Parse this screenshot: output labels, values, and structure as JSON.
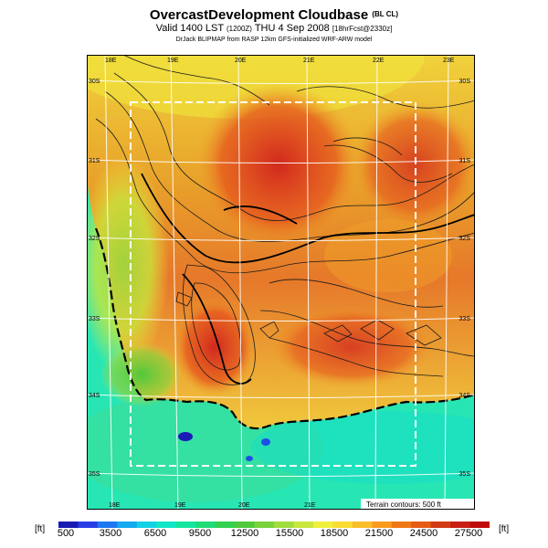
{
  "header": {
    "title_main": "OvercastDevelopment Cloudbase",
    "title_suffix": "(BL CL)",
    "valid_main": "Valid 1400 LST",
    "valid_code": "(1200Z)",
    "valid_day": "THU 4 Sep 2008",
    "valid_fcst": "[18hrFcst@2330z]",
    "credit": "DrJack BLIPMAP from RASP 12km GFS-initialized WRF-ARW model"
  },
  "map": {
    "top_lon_labels": [
      "18E",
      "19E",
      "20E",
      "21E",
      "22E",
      "23E"
    ],
    "bottom_lon_labels": [
      "18E",
      "19E",
      "20E",
      "21E"
    ],
    "left_lat_labels": [
      "30S",
      "31S",
      "32S",
      "33S",
      "34S",
      "35S"
    ],
    "right_lat_labels": [
      "30S",
      "31S",
      "32S",
      "33S",
      "34S",
      "35S"
    ],
    "terrain_note": "Terrain contours: 500 ft"
  },
  "colorbar": {
    "unit_left": "[ft]",
    "unit_right": "[ft]",
    "tick_labels": [
      "500",
      "3500",
      "6500",
      "9500",
      "12500",
      "15500",
      "18500",
      "21500",
      "24500",
      "27500"
    ],
    "colors": [
      "#1a1ab4",
      "#2a3ee6",
      "#1e78f0",
      "#14aaf0",
      "#14d2e6",
      "#14e6c8",
      "#14e6a0",
      "#1edc78",
      "#32d250",
      "#50c83c",
      "#78d23c",
      "#a0dc3c",
      "#c8e63c",
      "#f0f03c",
      "#fadc32",
      "#fabe28",
      "#fa9b1e",
      "#f07814",
      "#e65a14",
      "#d23c14",
      "#c81e14",
      "#c00a0a"
    ]
  }
}
